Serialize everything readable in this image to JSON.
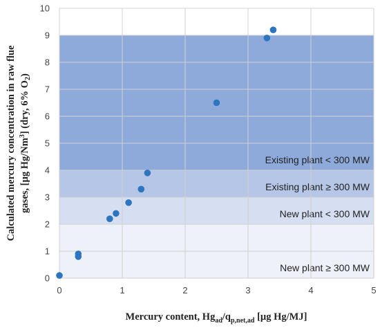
{
  "chart_data": {
    "type": "scatter",
    "title": "",
    "xlabel": {
      "main": "Mercury content, Hg",
      "sub1": "ad",
      "mid": "/q",
      "sub2": "p,net,ad",
      "tail": " [µg Hg/MJ]"
    },
    "ylabel": {
      "line1": "Calculated mercury concentration in raw flue",
      "line2_a": "gases, [µg Hg/Nm",
      "line2_sup": "3",
      "line2_b": "] (dry, 6% O",
      "line2_sub": "2",
      "line2_c": ")"
    },
    "xlim": [
      0,
      5
    ],
    "ylim": [
      0,
      10
    ],
    "x_ticks": [
      "0",
      "1",
      "2",
      "3",
      "4",
      "5"
    ],
    "y_ticks": [
      "0",
      "1",
      "2",
      "3",
      "4",
      "5",
      "6",
      "7",
      "8",
      "9",
      "10"
    ],
    "grid": true,
    "bands": [
      {
        "label": "New plant ≥ 300 MW",
        "y0": 0,
        "y1": 2,
        "color": "#eef1f9"
      },
      {
        "label": "New plant < 300 MW",
        "y0": 2,
        "y1": 3,
        "color": "#d5dff1"
      },
      {
        "label": "Existing plant ≥ 300 MW",
        "y0": 3,
        "y1": 4,
        "color": "#b5c6e6"
      },
      {
        "label": "Existing plant < 300 MW",
        "y0": 4,
        "y1": 9,
        "color": "#8eaadb"
      }
    ],
    "point_color": "#2e75c0",
    "points": [
      {
        "x": 0.0,
        "y": 0.1
      },
      {
        "x": 0.3,
        "y": 0.8
      },
      {
        "x": 0.3,
        "y": 0.9
      },
      {
        "x": 0.8,
        "y": 2.2
      },
      {
        "x": 0.9,
        "y": 2.4
      },
      {
        "x": 1.1,
        "y": 2.8
      },
      {
        "x": 1.3,
        "y": 3.3
      },
      {
        "x": 1.4,
        "y": 3.9
      },
      {
        "x": 2.5,
        "y": 6.5
      },
      {
        "x": 3.3,
        "y": 8.9
      },
      {
        "x": 3.4,
        "y": 9.2
      }
    ]
  }
}
